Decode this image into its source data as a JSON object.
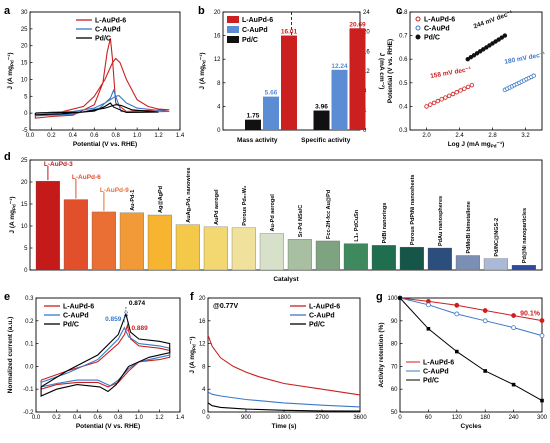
{
  "chart_data": [
    {
      "panel": "a",
      "type": "line",
      "xlabel": "Potential (V vs. RHE)",
      "ylabel": "J (A mg",
      "ylabel_sub": "Pd",
      "ylabel_tail": "⁻¹)",
      "xlim": [
        0,
        1.4
      ],
      "ylim": [
        -5,
        30
      ],
      "xticks": [
        "0.0",
        "0.2",
        "0.4",
        "0.6",
        "0.8",
        "1.0",
        "1.2",
        "1.4"
      ],
      "yticks": [
        "-5",
        "0",
        "5",
        "10",
        "15",
        "20",
        "25",
        "30"
      ],
      "series": [
        {
          "name": "L-AuPd-6",
          "color": "#cc1f1f",
          "forward": [
            [
              0.05,
              0
            ],
            [
              0.3,
              0.4
            ],
            [
              0.5,
              2
            ],
            [
              0.6,
              5
            ],
            [
              0.7,
              10
            ],
            [
              0.77,
              15
            ],
            [
              0.8,
              16.2
            ],
            [
              0.84,
              15
            ],
            [
              0.9,
              10
            ],
            [
              1.0,
              4
            ],
            [
              1.1,
              2
            ],
            [
              1.2,
              1.2
            ],
            [
              1.3,
              1
            ]
          ],
          "backward": [
            [
              1.3,
              1
            ],
            [
              1.1,
              0.8
            ],
            [
              0.9,
              0.5
            ],
            [
              0.8,
              3
            ],
            [
              0.77,
              16
            ],
            [
              0.75,
              22.2
            ],
            [
              0.72,
              18
            ],
            [
              0.68,
              9
            ],
            [
              0.6,
              2.5
            ],
            [
              0.4,
              -0.6
            ],
            [
              0.2,
              -1
            ],
            [
              0.05,
              -1.5
            ],
            [
              0.05,
              0
            ]
          ]
        },
        {
          "name": "C-AuPd",
          "color": "#3a78c8",
          "forward": [
            [
              0.05,
              0
            ],
            [
              0.4,
              0.5
            ],
            [
              0.6,
              1.5
            ],
            [
              0.7,
              3
            ],
            [
              0.8,
              5
            ],
            [
              0.83,
              5.2
            ],
            [
              0.9,
              3
            ],
            [
              1.0,
              1.5
            ],
            [
              1.3,
              0.5
            ]
          ],
          "backward": [
            [
              1.3,
              0.5
            ],
            [
              1.0,
              0.3
            ],
            [
              0.85,
              0.5
            ],
            [
              0.8,
              5
            ],
            [
              0.78,
              6.8
            ],
            [
              0.75,
              4.5
            ],
            [
              0.65,
              1.5
            ],
            [
              0.4,
              -0.3
            ],
            [
              0.05,
              -0.8
            ],
            [
              0.05,
              0
            ]
          ]
        },
        {
          "name": "Pd/C",
          "color": "#000000",
          "forward": [
            [
              0.05,
              0
            ],
            [
              0.5,
              0.3
            ],
            [
              0.7,
              1.5
            ],
            [
              0.8,
              2.5
            ],
            [
              0.85,
              2.3
            ],
            [
              0.95,
              1
            ],
            [
              1.2,
              0.3
            ]
          ],
          "backward": [
            [
              1.2,
              0.3
            ],
            [
              0.9,
              0.2
            ],
            [
              0.78,
              1.8
            ],
            [
              0.75,
              3
            ],
            [
              0.7,
              2
            ],
            [
              0.6,
              0.6
            ],
            [
              0.3,
              -0.2
            ],
            [
              0.05,
              -0.5
            ],
            [
              0.05,
              0
            ]
          ]
        }
      ]
    },
    {
      "panel": "b",
      "type": "bar",
      "categories": [
        "Mass activity",
        "Specific activity"
      ],
      "ylabel_left": "J (A mg",
      "ylabel_left_sub": "Pd",
      "ylabel_left_tail": "⁻¹)",
      "ylabel_right": "J (mA cm",
      "ylabel_right_tail": "⁻²)",
      "ylim_left": [
        0,
        20
      ],
      "ylim_right": [
        0,
        24
      ],
      "yticks_left": [
        "0",
        "4",
        "8",
        "12",
        "16",
        "20"
      ],
      "yticks_right": [
        "0",
        "4",
        "8",
        "12",
        "16",
        "20",
        "24"
      ],
      "series": [
        {
          "name": "L-AuPd-6",
          "color": "#cc1f1f",
          "values": [
            16.01,
            20.69
          ],
          "labels": [
            "16.01",
            "20.69"
          ]
        },
        {
          "name": "C-AuPd",
          "color": "#5b8cd4",
          "values": [
            5.66,
            12.24
          ],
          "labels": [
            "5.66",
            "12.24"
          ]
        },
        {
          "name": "Pd/C",
          "color": "#111111",
          "values": [
            1.75,
            3.96
          ],
          "labels": [
            "1.75",
            "3.96"
          ]
        }
      ]
    },
    {
      "panel": "c",
      "type": "scatter",
      "xlabel": "Log J (mA mg",
      "xlabel_sub": "Pd",
      "xlabel_tail": "⁻¹)",
      "ylabel": "Potential (V vs. RHE)",
      "xlim": [
        1.8,
        3.4
      ],
      "ylim": [
        0.3,
        0.8
      ],
      "xticks": [
        "2.0",
        "2.4",
        "2.8",
        "3.2"
      ],
      "yticks": [
        "0.3",
        "0.4",
        "0.5",
        "0.6",
        "0.7",
        "0.8"
      ],
      "series": [
        {
          "name": "L-AuPd-6",
          "color": "#cc1f1f",
          "x0": 2.0,
          "x1": 2.55,
          "y0": 0.4,
          "y1": 0.49,
          "n": 13,
          "annotation": "158 mV dec⁻¹"
        },
        {
          "name": "C-AuPd",
          "color": "#3a78c8",
          "x0": 2.95,
          "x1": 3.3,
          "y0": 0.47,
          "y1": 0.53,
          "n": 13,
          "annotation": "180 mV dec⁻¹"
        },
        {
          "name": "Pd/C",
          "color": "#111111",
          "x0": 2.5,
          "x1": 2.95,
          "y0": 0.6,
          "y1": 0.7,
          "n": 13,
          "annotation": "244 mV dec⁻¹"
        }
      ]
    },
    {
      "panel": "d",
      "type": "bar",
      "xlabel": "Catalyst",
      "ylabel": "J (A mg",
      "ylabel_sub": "Pd",
      "ylabel_tail": "⁻¹)",
      "ylim": [
        0,
        25
      ],
      "yticks": [
        "0",
        "5",
        "10",
        "15",
        "20",
        "25"
      ],
      "categories": [
        "L-AuPd-3",
        "L-AuPd-6",
        "L-AuPd-9",
        "Au-Pd-1",
        "Ag@AgPd",
        "AuAg₂Pd₁ nanowires",
        "AuPd aerogel",
        "Porous Pd₈₀W₂",
        "Au-Pd aerogel",
        "Sr-Pd NSs/C",
        "Fcc-2H-fcc Au@Pd",
        "L1₀ PdCuSn",
        "PdBi nanorings",
        "Porous PdPtNi nanosheets",
        "PdAu nanospheres",
        "PdMoBi bimetallene",
        "Pd/NC@NGS-2",
        "Pd@Ni nanoparticles"
      ],
      "values": [
        20.2,
        16.01,
        13.2,
        13.0,
        12.5,
        10.3,
        9.8,
        9.6,
        8.3,
        7.0,
        6.6,
        6.0,
        5.6,
        5.2,
        5.0,
        3.3,
        2.6,
        1.1
      ],
      "colors": [
        "#c41a1a",
        "#e2502b",
        "#e96f35",
        "#f29a38",
        "#f6b430",
        "#f4c94a",
        "#f3d771",
        "#f0e19c",
        "#d7e0c8",
        "#a8bfa2",
        "#7ea381",
        "#3e8a5e",
        "#1f6e50",
        "#155648",
        "#2c4e7d",
        "#7b8fb4",
        "#aab9d6",
        "#2f49a0"
      ],
      "highlight_labels": [
        "L-AuPd-3",
        "L-AuPd-6",
        "L-AuPd-9"
      ],
      "highlight_colors": [
        "#c41a1a",
        "#e2502b",
        "#e96f35"
      ]
    },
    {
      "panel": "e",
      "type": "line",
      "xlabel": "Potential (V vs. RHE)",
      "ylabel": "Normalized current (a.u.)",
      "xlim": [
        0,
        1.4
      ],
      "ylim": [
        -0.2,
        0.3
      ],
      "xticks": [
        "0.0",
        "0.2",
        "0.4",
        "0.6",
        "0.8",
        "1.0",
        "1.2",
        "1.4"
      ],
      "yticks": [
        "-0.2",
        "-0.1",
        "0.0",
        "0.1",
        "0.2",
        "0.3"
      ],
      "annotations": [
        {
          "text": "0.874",
          "color": "#000000",
          "x": 0.874
        },
        {
          "text": "0.859",
          "color": "#3a78c8",
          "x": 0.859
        },
        {
          "text": "0.889",
          "color": "#cc1f1f",
          "x": 0.889
        }
      ],
      "series": [
        {
          "name": "L-AuPd-6",
          "color": "#cc1f1f",
          "points": [
            [
              0.05,
              -0.06
            ],
            [
              0.3,
              -0.02
            ],
            [
              0.6,
              0.02
            ],
            [
              0.8,
              0.1
            ],
            [
              0.86,
              0.14
            ],
            [
              0.889,
              0.18
            ],
            [
              0.92,
              0.12
            ],
            [
              1.0,
              0.09
            ],
            [
              1.2,
              0.08
            ],
            [
              1.3,
              0.07
            ],
            [
              1.3,
              0.04
            ],
            [
              1.2,
              0.03
            ],
            [
              1.0,
              0.02
            ],
            [
              0.9,
              -0.02
            ],
            [
              0.8,
              -0.07
            ],
            [
              0.7,
              -0.09
            ],
            [
              0.6,
              -0.07
            ],
            [
              0.4,
              -0.07
            ],
            [
              0.2,
              -0.08
            ],
            [
              0.05,
              -0.1
            ],
            [
              0.05,
              -0.06
            ]
          ]
        },
        {
          "name": "C-AuPd",
          "color": "#3a78c8",
          "points": [
            [
              0.05,
              -0.07
            ],
            [
              0.3,
              -0.03
            ],
            [
              0.6,
              0.03
            ],
            [
              0.8,
              0.12
            ],
            [
              0.859,
              0.17
            ],
            [
              0.9,
              0.13
            ],
            [
              1.0,
              0.1
            ],
            [
              1.2,
              0.09
            ],
            [
              1.3,
              0.08
            ],
            [
              1.3,
              0.05
            ],
            [
              1.2,
              0.04
            ],
            [
              1.0,
              0.02
            ],
            [
              0.9,
              -0.01
            ],
            [
              0.8,
              -0.06
            ],
            [
              0.72,
              -0.085
            ],
            [
              0.6,
              -0.06
            ],
            [
              0.4,
              -0.06
            ],
            [
              0.2,
              -0.075
            ],
            [
              0.05,
              -0.09
            ],
            [
              0.05,
              -0.07
            ]
          ]
        },
        {
          "name": "Pd/C",
          "color": "#000000",
          "points": [
            [
              0.05,
              -0.09
            ],
            [
              0.3,
              -0.02
            ],
            [
              0.6,
              0.05
            ],
            [
              0.8,
              0.14
            ],
            [
              0.874,
              0.23
            ],
            [
              0.92,
              0.15
            ],
            [
              1.0,
              0.12
            ],
            [
              1.2,
              0.11
            ],
            [
              1.3,
              0.1
            ],
            [
              1.3,
              0.06
            ],
            [
              1.1,
              0.04
            ],
            [
              0.9,
              0.0
            ],
            [
              0.78,
              -0.08
            ],
            [
              0.7,
              -0.11
            ],
            [
              0.62,
              -0.09
            ],
            [
              0.4,
              -0.08
            ],
            [
              0.2,
              -0.1
            ],
            [
              0.05,
              -0.13
            ],
            [
              0.05,
              -0.09
            ]
          ]
        }
      ]
    },
    {
      "panel": "f",
      "type": "line",
      "xlabel": "Time (s)",
      "ylabel": "J (A mg",
      "ylabel_sub": "Pd",
      "ylabel_tail": "⁻¹)",
      "xlim": [
        0,
        3600
      ],
      "ylim": [
        0,
        20
      ],
      "xticks": [
        "0",
        "900",
        "1800",
        "2700",
        "3600"
      ],
      "yticks": [
        "0",
        "4",
        "8",
        "12",
        "16",
        "20"
      ],
      "annotation": "@0.77V",
      "series": [
        {
          "name": "L-AuPd-6",
          "color": "#cc1f1f",
          "points": [
            [
              0,
              13.5
            ],
            [
              100,
              11.5
            ],
            [
              300,
              9.5
            ],
            [
              600,
              8
            ],
            [
              900,
              7
            ],
            [
              1200,
              6.2
            ],
            [
              1800,
              5
            ],
            [
              2700,
              4
            ],
            [
              3600,
              3
            ]
          ]
        },
        {
          "name": "C-AuPd",
          "color": "#3a78c8",
          "points": [
            [
              0,
              3.5
            ],
            [
              100,
              3.1
            ],
            [
              300,
              2.8
            ],
            [
              900,
              2.2
            ],
            [
              1800,
              1.6
            ],
            [
              2700,
              1.2
            ],
            [
              3600,
              0.9
            ]
          ]
        },
        {
          "name": "Pd/C",
          "color": "#000000",
          "points": [
            [
              0,
              1.6
            ],
            [
              100,
              1.1
            ],
            [
              300,
              0.8
            ],
            [
              900,
              0.5
            ],
            [
              1800,
              0.3
            ],
            [
              2700,
              0.2
            ],
            [
              3600,
              0.15
            ]
          ]
        }
      ]
    },
    {
      "panel": "g",
      "type": "line",
      "xlabel": "Cycles",
      "ylabel": "Activity retention (%)",
      "xlim": [
        0,
        300
      ],
      "ylim": [
        50,
        100
      ],
      "xticks": [
        "0",
        "60",
        "120",
        "180",
        "240",
        "300"
      ],
      "yticks": [
        "50",
        "60",
        "70",
        "80",
        "90",
        "100"
      ],
      "annotation": "90.1%",
      "series": [
        {
          "name": "L-AuPd-6",
          "color": "#cc1f1f",
          "x": [
            0,
            60,
            120,
            180,
            240,
            300
          ],
          "values": [
            100,
            98.5,
            96.8,
            94.5,
            92.3,
            90.1
          ]
        },
        {
          "name": "C-AuPd",
          "color": "#3a78c8",
          "x": [
            0,
            60,
            120,
            180,
            240,
            300
          ],
          "values": [
            100,
            97,
            93,
            90,
            87,
            83.5
          ]
        },
        {
          "name": "Pd/C",
          "color": "#000000",
          "x": [
            0,
            60,
            120,
            180,
            240,
            300
          ],
          "values": [
            100,
            86.5,
            76.5,
            68,
            62,
            55
          ]
        }
      ]
    }
  ],
  "panels": {
    "a": "a",
    "b": "b",
    "c": "c",
    "d": "d",
    "e": "e",
    "f": "f",
    "g": "g"
  }
}
